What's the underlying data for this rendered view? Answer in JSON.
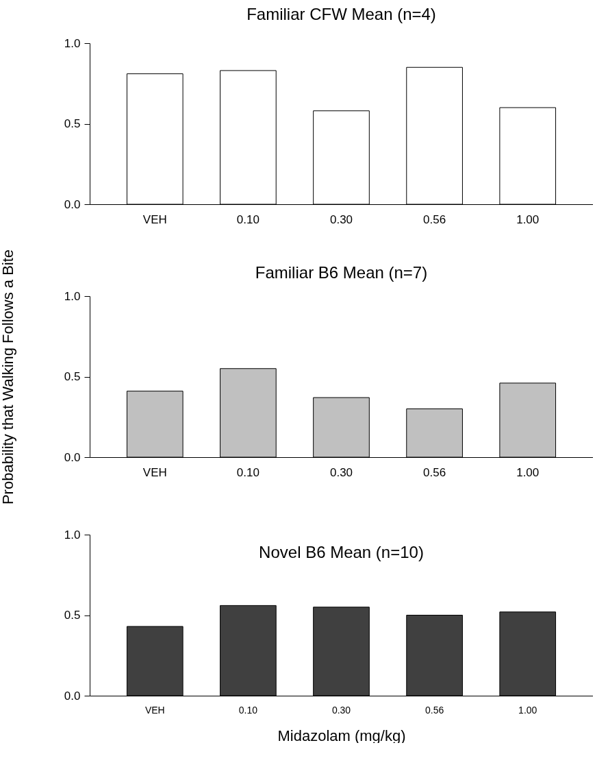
{
  "chart_data": [
    {
      "type": "bar",
      "title": "Familiar CFW Mean (n=4)",
      "categories": [
        "VEH",
        "0.10",
        "0.30",
        "0.56",
        "1.00"
      ],
      "values": [
        0.81,
        0.83,
        0.58,
        0.85,
        0.6
      ],
      "color": "#ffffff",
      "ylim": [
        0,
        1
      ],
      "yticks": [
        {
          "value": 0,
          "label": "0.0"
        },
        {
          "value": 0.5,
          "label": "0.5"
        },
        {
          "value": 1,
          "label": "1.0"
        }
      ]
    },
    {
      "type": "bar",
      "title": "Familiar B6 Mean (n=7)",
      "ylabel": "Probability that Walking Follows a Bite",
      "categories": [
        "VEH",
        "0.10",
        "0.30",
        "0.56",
        "1.00"
      ],
      "values": [
        0.41,
        0.55,
        0.37,
        0.3,
        0.46
      ],
      "color": "#c0c0c0",
      "ylim": [
        0,
        1
      ],
      "yticks": [
        {
          "value": 0,
          "label": "0.0"
        },
        {
          "value": 0.5,
          "label": "0.5"
        },
        {
          "value": 1,
          "label": "1.0"
        }
      ]
    },
    {
      "type": "bar",
      "title": "Novel B6 Mean (n=10)",
      "xlabel": "Midazolam (mg/kg)",
      "categories": [
        "VEH",
        "0.10",
        "0.30",
        "0.56",
        "1.00"
      ],
      "values": [
        0.43,
        0.56,
        0.55,
        0.5,
        0.52
      ],
      "color": "#404040",
      "ylim": [
        0,
        1
      ],
      "yticks": [
        {
          "value": 0,
          "label": "0.0"
        },
        {
          "value": 0.5,
          "label": "0.5"
        },
        {
          "value": 1,
          "label": "1.0"
        }
      ]
    }
  ]
}
